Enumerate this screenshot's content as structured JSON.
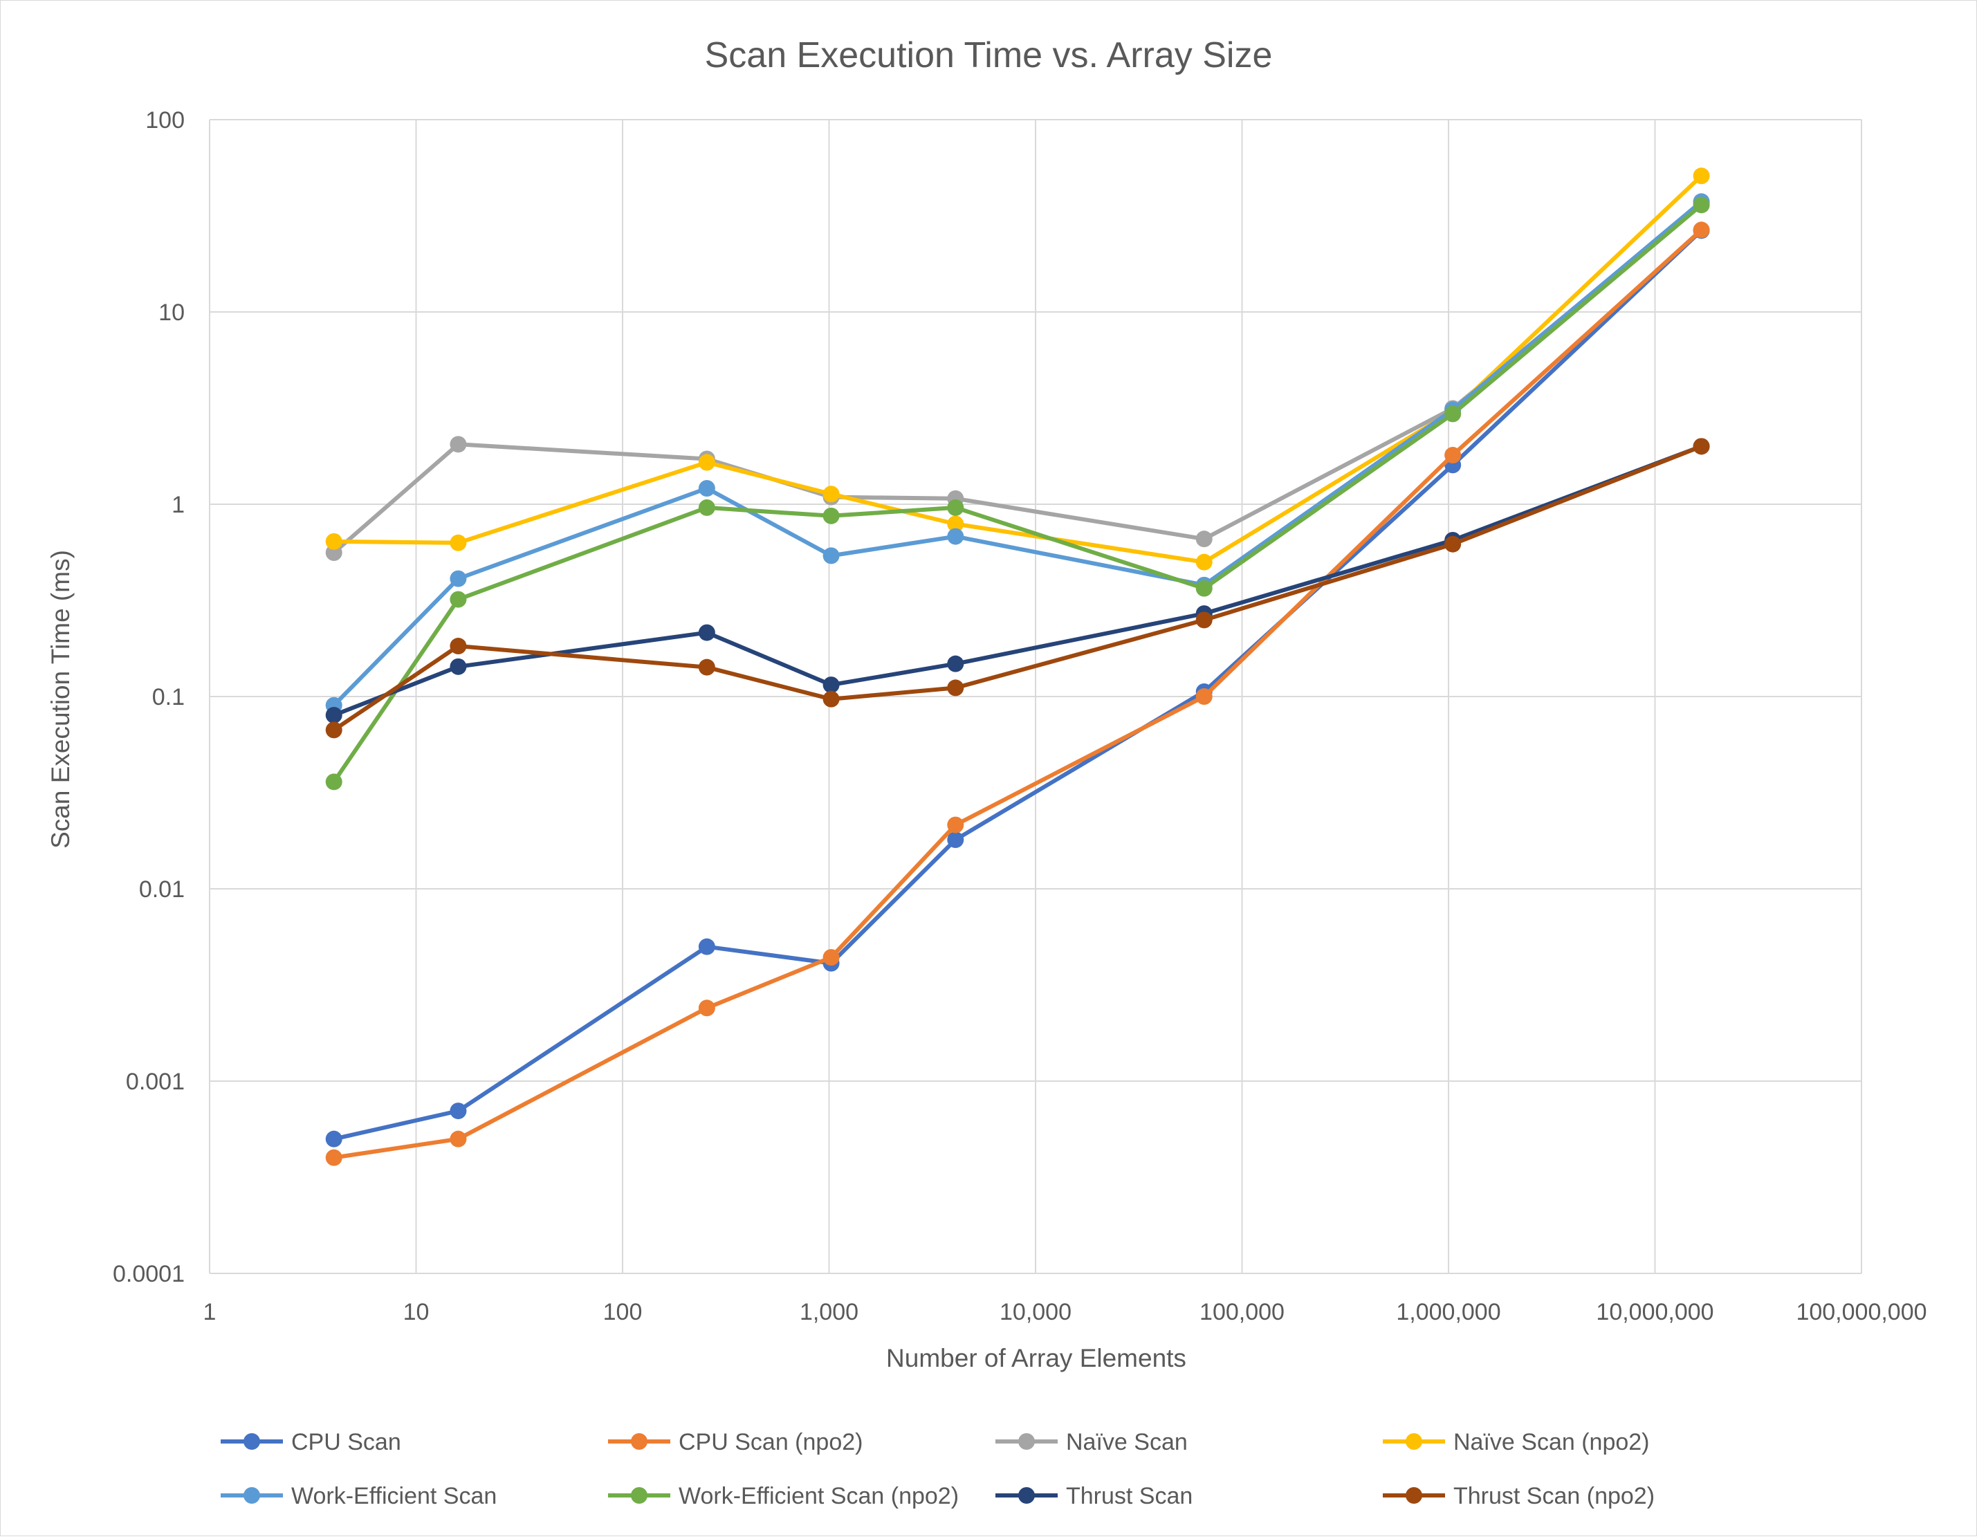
{
  "chart_data": {
    "type": "line",
    "title": "Scan Execution Time vs. Array Size",
    "xlabel": "Number of Array Elements",
    "ylabel": "Scan Execution Time (ms)",
    "x_scale": "log",
    "y_scale": "log",
    "xlim": [
      1,
      100000000
    ],
    "ylim": [
      0.0001,
      100
    ],
    "grid": true,
    "legend_position": "bottom",
    "x_ticks": [
      {
        "value": 1,
        "label": "1"
      },
      {
        "value": 10,
        "label": "10"
      },
      {
        "value": 100,
        "label": "100"
      },
      {
        "value": 1000,
        "label": "1,000"
      },
      {
        "value": 10000,
        "label": "10,000"
      },
      {
        "value": 100000,
        "label": "100,000"
      },
      {
        "value": 1000000,
        "label": "1,000,000"
      },
      {
        "value": 10000000,
        "label": "10,000,000"
      },
      {
        "value": 100000000,
        "label": "100,000,000"
      }
    ],
    "y_ticks": [
      {
        "value": 0.0001,
        "label": "0.0001"
      },
      {
        "value": 0.001,
        "label": "0.001"
      },
      {
        "value": 0.01,
        "label": "0.01"
      },
      {
        "value": 0.1,
        "label": "0.1"
      },
      {
        "value": 1,
        "label": "1"
      },
      {
        "value": 10,
        "label": "10"
      },
      {
        "value": 100,
        "label": "100"
      }
    ],
    "series": [
      {
        "name": "CPU Scan",
        "color": "#4472C4",
        "x": [
          4,
          16,
          256,
          1024,
          4096,
          65536,
          1048576,
          16777216
        ],
        "y": [
          0.0005,
          0.0007,
          0.005,
          0.0041,
          0.018,
          0.106,
          1.6,
          26.5
        ]
      },
      {
        "name": "CPU Scan (npo2)",
        "color": "#ED7D31",
        "x": [
          4,
          16,
          256,
          1024,
          4096,
          65536,
          1048576,
          16777216
        ],
        "y": [
          0.0004,
          0.0005,
          0.0024,
          0.0044,
          0.0215,
          0.1,
          1.8,
          26.7
        ]
      },
      {
        "name": "Naïve Scan",
        "color": "#A5A5A5",
        "x": [
          4,
          16,
          256,
          1024,
          4096,
          65536,
          1048576,
          16777216
        ],
        "y": [
          0.56,
          2.05,
          1.72,
          1.09,
          1.07,
          0.66,
          3.15,
          37
        ]
      },
      {
        "name": "Naïve Scan (npo2)",
        "color": "#FFC000",
        "x": [
          4,
          16,
          256,
          1024,
          4096,
          65536,
          1048576,
          16777216
        ],
        "y": [
          0.64,
          0.63,
          1.65,
          1.13,
          0.79,
          0.5,
          3.05,
          51
        ]
      },
      {
        "name": "Work-Efficient Scan",
        "color": "#5B9BD5",
        "x": [
          4,
          16,
          256,
          1024,
          4096,
          65536,
          1048576,
          16777216
        ],
        "y": [
          0.09,
          0.41,
          1.21,
          0.54,
          0.68,
          0.38,
          3.1,
          37.5
        ]
      },
      {
        "name": "Work-Efficient Scan (npo2)",
        "color": "#70AD47",
        "x": [
          4,
          16,
          256,
          1024,
          4096,
          65536,
          1048576,
          16777216
        ],
        "y": [
          0.036,
          0.32,
          0.96,
          0.87,
          0.96,
          0.365,
          2.95,
          36
        ]
      },
      {
        "name": "Thrust Scan",
        "color": "#264478",
        "x": [
          4,
          16,
          256,
          1024,
          4096,
          65536,
          1048576,
          16777216
        ],
        "y": [
          0.08,
          0.143,
          0.215,
          0.115,
          0.148,
          0.27,
          0.65,
          2
        ]
      },
      {
        "name": "Thrust Scan (npo2)",
        "color": "#9E480E",
        "x": [
          4,
          16,
          256,
          1024,
          4096,
          65536,
          1048576,
          16777216
        ],
        "y": [
          0.067,
          0.183,
          0.142,
          0.097,
          0.111,
          0.25,
          0.62,
          2
        ]
      }
    ]
  }
}
